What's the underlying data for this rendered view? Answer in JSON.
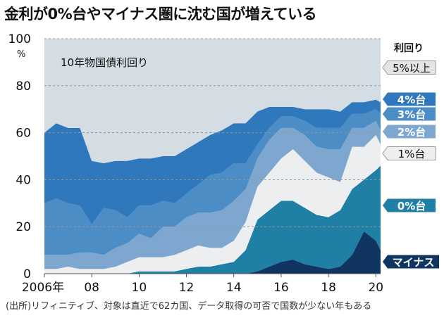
{
  "headline": "金利が0%台やマイナス圏に沈む国が増えている",
  "source_note": "(出所)リフィニティブ、対象は直近で62カ国、データ取得の可否で国数が少ない年もある",
  "colors": {
    "plot_bg": "#d4dde3",
    "minus": "#0f3560",
    "zero": "#1f7fa5",
    "one": "#eceeef",
    "two": "#7ea7cf",
    "three": "#4c8dc6",
    "four": "#2f78bb",
    "five_plus": "#d4dde3"
  },
  "chart_data": {
    "type": "area",
    "stacked": true,
    "title": "10年物国債利回り",
    "ylabel": "%",
    "ylim": [
      0,
      100
    ],
    "yticks": [
      0,
      20,
      40,
      60,
      80,
      100
    ],
    "xlim": [
      2006,
      2020.2
    ],
    "xticks": [
      {
        "value": 2006,
        "label": "2006年"
      },
      {
        "value": 2008,
        "label": "08"
      },
      {
        "value": 2010,
        "label": "10"
      },
      {
        "value": 2012,
        "label": "12"
      },
      {
        "value": 2014,
        "label": "14"
      },
      {
        "value": 2016,
        "label": "16"
      },
      {
        "value": 2018,
        "label": "18"
      },
      {
        "value": 2020,
        "label": "20"
      }
    ],
    "legend_title": "利回り",
    "legend_position": "right",
    "x": [
      2006,
      2006.5,
      2007,
      2007.5,
      2008,
      2008.5,
      2009,
      2009.5,
      2010,
      2010.5,
      2011,
      2011.5,
      2012,
      2012.5,
      2013,
      2013.5,
      2014,
      2014.5,
      2015,
      2015.5,
      2016,
      2016.5,
      2017,
      2017.5,
      2018,
      2018.5,
      2019,
      2019.5,
      2020,
      2020.2
    ],
    "series": [
      {
        "name": "マイナス",
        "key": "minus",
        "values": [
          0,
          0,
          0,
          0,
          0,
          0,
          0,
          0,
          0,
          0,
          0,
          0,
          0,
          0,
          0,
          0,
          0,
          0,
          1,
          3,
          5,
          6,
          4,
          3,
          2,
          3,
          8,
          18,
          14,
          10
        ]
      },
      {
        "name": "0%台",
        "key": "zero",
        "values": [
          0,
          0,
          0,
          0,
          0,
          0,
          0,
          0,
          1,
          1,
          1,
          1,
          2,
          3,
          3,
          4,
          5,
          10,
          22,
          24,
          26,
          25,
          24,
          22,
          22,
          24,
          28,
          22,
          30,
          36
        ]
      },
      {
        "name": "1%台",
        "key": "one",
        "values": [
          2,
          2,
          3,
          2,
          2,
          2,
          3,
          5,
          6,
          6,
          6,
          7,
          8,
          9,
          8,
          7,
          9,
          12,
          14,
          16,
          18,
          22,
          20,
          18,
          17,
          12,
          18,
          14,
          15,
          9
        ]
      },
      {
        "name": "2%台",
        "key": "two",
        "values": [
          6,
          6,
          5,
          7,
          7,
          6,
          8,
          8,
          10,
          8,
          13,
          12,
          14,
          14,
          15,
          16,
          17,
          14,
          12,
          14,
          13,
          9,
          11,
          11,
          12,
          14,
          8,
          8,
          6,
          6
        ]
      },
      {
        "name": "3%台",
        "key": "three",
        "values": [
          22,
          24,
          22,
          20,
          12,
          20,
          16,
          11,
          12,
          14,
          11,
          10,
          10,
          12,
          16,
          16,
          16,
          11,
          6,
          5,
          5,
          5,
          6,
          8,
          9,
          9,
          6,
          6,
          5,
          7
        ]
      },
      {
        "name": "4%台",
        "key": "four",
        "values": [
          30,
          32,
          32,
          33,
          27,
          19,
          21,
          24,
          20,
          20,
          19,
          20,
          19,
          18,
          17,
          18,
          17,
          17,
          14,
          9,
          4,
          4,
          5,
          8,
          8,
          7,
          5,
          5,
          4,
          5
        ]
      },
      {
        "name": "5%以上",
        "key": "five_plus",
        "values": [
          40,
          36,
          38,
          38,
          52,
          53,
          52,
          52,
          51,
          51,
          50,
          50,
          47,
          44,
          41,
          39,
          36,
          36,
          31,
          29,
          29,
          29,
          30,
          30,
          30,
          31,
          27,
          27,
          26,
          27
        ]
      }
    ]
  }
}
